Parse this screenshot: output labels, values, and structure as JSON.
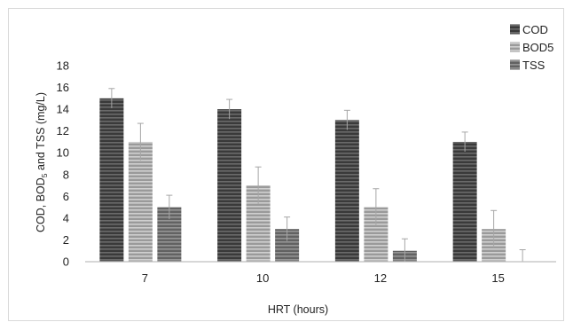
{
  "chart_data": {
    "type": "bar",
    "categories": [
      "7",
      "10",
      "12",
      "15"
    ],
    "series": [
      {
        "name": "COD",
        "values": [
          15,
          14,
          13,
          11
        ],
        "error": [
          0.9,
          0.9,
          0.9,
          0.9
        ],
        "color": "#404040"
      },
      {
        "name": "BOD5",
        "values": [
          11,
          7,
          5,
          3
        ],
        "error": [
          1.7,
          1.7,
          1.7,
          1.7
        ],
        "color": "#a6a6a6"
      },
      {
        "name": "TSS",
        "values": [
          5,
          3,
          1,
          0
        ],
        "error": [
          1.1,
          1.1,
          1.1,
          1.1
        ],
        "color": "#6e6e6e"
      }
    ],
    "xlabel": "HRT (hours)",
    "ylabel": {
      "prefix": "COD, BOD",
      "subscript": "5",
      "suffix": " and TSS  (mg/L)"
    },
    "ylim": [
      0,
      18
    ],
    "yticks": [
      0,
      2,
      4,
      6,
      8,
      10,
      12,
      14,
      16,
      18
    ],
    "grid": false,
    "legend_position": "top-right"
  }
}
